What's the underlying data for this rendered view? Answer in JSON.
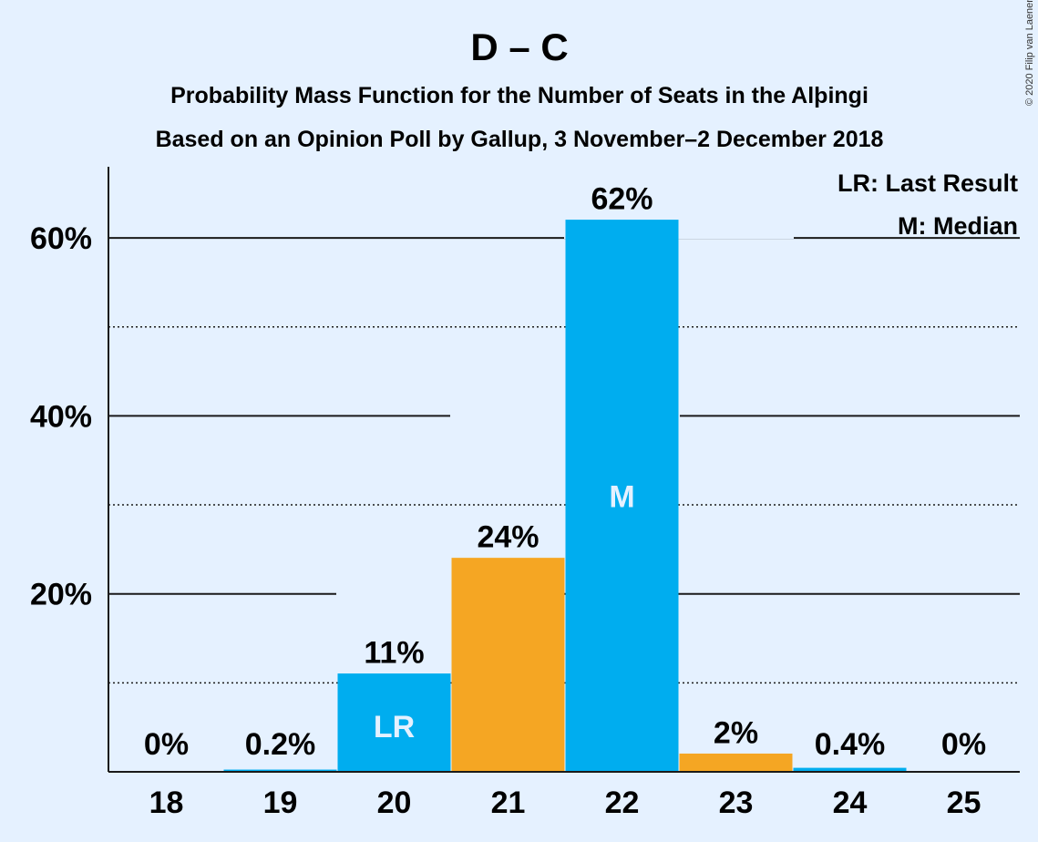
{
  "chart_data": {
    "type": "bar",
    "title": "D – C",
    "subtitle_lines": [
      "Probability Mass Function for the Number of Seats in the Alþingi",
      "Based on an Opinion Poll by Gallup, 3 November–2 December 2018"
    ],
    "categories": [
      "18",
      "19",
      "20",
      "21",
      "22",
      "23",
      "24",
      "25"
    ],
    "values": [
      0,
      0.2,
      11,
      24,
      62,
      2,
      0.4,
      0
    ],
    "value_labels": [
      "0%",
      "0.2%",
      "11%",
      "24%",
      "62%",
      "2%",
      "0.4%",
      "0%"
    ],
    "bar_colors": [
      "#00adef",
      "#00adef",
      "#00adef",
      "#f5a623",
      "#00adef",
      "#f5a623",
      "#00adef",
      "#00adef"
    ],
    "inside_labels": [
      {
        "category": "20",
        "text": "LR"
      },
      {
        "category": "22",
        "text": "M"
      }
    ],
    "ylim": [
      0,
      68
    ],
    "y_major_ticks": [
      20,
      40,
      60
    ],
    "y_tick_labels": [
      "20%",
      "40%",
      "60%"
    ],
    "y_minor_gridlines": [
      10,
      30,
      50
    ],
    "legend": [
      "LR: Last Result",
      "M: Median"
    ],
    "legend_position": "top-right",
    "copyright": "© 2020 Filip van Laenen"
  },
  "colors": {
    "background": "#e5f1ff",
    "blue": "#00adef",
    "orange": "#f5a623",
    "text": "#1a1a1a"
  }
}
